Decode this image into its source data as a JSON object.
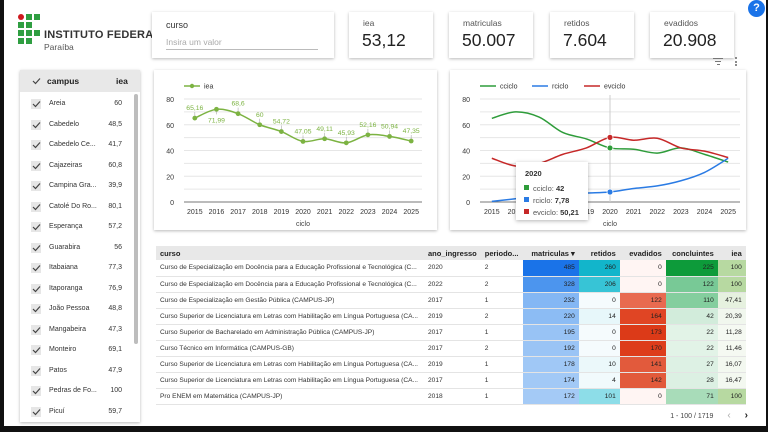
{
  "logo": {
    "title": "INSTITUTO FEDERAL",
    "subtitle": "Paraíba"
  },
  "curso_filter": {
    "label": "curso",
    "placeholder": "Insira um valor",
    "value": ""
  },
  "scorecards": [
    {
      "label": "iea",
      "value": "53,12"
    },
    {
      "label": "matriculas",
      "value": "50.007"
    },
    {
      "label": "retidos",
      "value": "7.604"
    },
    {
      "label": "evadidos",
      "value": "20.908"
    }
  ],
  "help_label": "?",
  "campus_list": {
    "header": {
      "name": "campus",
      "value": "iea"
    },
    "items": [
      {
        "name": "Areia",
        "value": "60",
        "checked": true
      },
      {
        "name": "Cabedelo",
        "value": "48,5",
        "checked": true
      },
      {
        "name": "Cabedelo Ce...",
        "value": "41,7",
        "checked": true
      },
      {
        "name": "Cajazeiras",
        "value": "60,8",
        "checked": true
      },
      {
        "name": "Campina Gra...",
        "value": "39,9",
        "checked": true
      },
      {
        "name": "Catolé Do Ro...",
        "value": "80,1",
        "checked": true
      },
      {
        "name": "Esperança",
        "value": "57,2",
        "checked": true
      },
      {
        "name": "Guarabira",
        "value": "56",
        "checked": true
      },
      {
        "name": "Itabaiana",
        "value": "77,3",
        "checked": true
      },
      {
        "name": "Itaporanga",
        "value": "76,9",
        "checked": true
      },
      {
        "name": "João Pessoa",
        "value": "48,8",
        "checked": true
      },
      {
        "name": "Mangabeira",
        "value": "47,3",
        "checked": true
      },
      {
        "name": "Monteiro",
        "value": "69,1",
        "checked": true
      },
      {
        "name": "Patos",
        "value": "47,9",
        "checked": true
      },
      {
        "name": "Pedras de Fo...",
        "value": "100",
        "checked": true
      },
      {
        "name": "Picuí",
        "value": "59,7",
        "checked": true
      }
    ]
  },
  "chart_data": [
    {
      "type": "line",
      "title": "",
      "xlabel": "ciclo",
      "ylabel": "",
      "x": [
        "2015",
        "2016",
        "2017",
        "2018",
        "2019",
        "2020",
        "2021",
        "2022",
        "2023",
        "2024",
        "2025"
      ],
      "ylim": [
        0,
        80
      ],
      "yticks": [
        "0",
        "20",
        "40",
        "60",
        "80"
      ],
      "grid": true,
      "legend": "top-left",
      "series": [
        {
          "name": "iea",
          "color": "#7cb342",
          "values": [
            65.16,
            71.99,
            68.6,
            60,
            54.72,
            47.05,
            49.11,
            45.93,
            52.16,
            50.94,
            47.35
          ],
          "labels": [
            "65,16",
            "71,99",
            "68,6",
            "60",
            "54,72",
            "47,05",
            "49,11",
            "45,93",
            "52,16",
            "50,94",
            "47,35"
          ]
        }
      ]
    },
    {
      "type": "line",
      "title": "",
      "xlabel": "ciclo",
      "ylabel": "",
      "x": [
        "2015",
        "2016",
        "2017",
        "2018",
        "2019",
        "2020",
        "2021",
        "2022",
        "2023",
        "2024",
        "2025"
      ],
      "ylim": [
        0,
        80
      ],
      "yticks": [
        "0",
        "20",
        "40",
        "60",
        "80"
      ],
      "grid": true,
      "legend": "top-left",
      "series": [
        {
          "name": "cciclo",
          "color": "#2e9c3a",
          "values": [
            65,
            70,
            66,
            54,
            49,
            42,
            41,
            38,
            42,
            37,
            31
          ]
        },
        {
          "name": "rciclo",
          "color": "#2a7be4",
          "values": [
            0.5,
            2.5,
            4.5,
            6,
            7,
            7.78,
            10.5,
            12.5,
            16.5,
            23,
            34
          ]
        },
        {
          "name": "evciclo",
          "color": "#c62828",
          "values": [
            34,
            28,
            30,
            37,
            42,
            50.21,
            48,
            49.5,
            42,
            39.5,
            34.5
          ]
        }
      ],
      "tooltip": {
        "title": "2020",
        "rows": [
          {
            "name": "cciclo",
            "value": "42",
            "color": "#2e9c3a"
          },
          {
            "name": "rciclo",
            "value": "7,78",
            "color": "#2a7be4"
          },
          {
            "name": "evciclo",
            "value": "50,21",
            "color": "#c62828"
          }
        ]
      }
    }
  ],
  "table": {
    "columns": [
      "curso",
      "ano_ingresso",
      "periodo...",
      "matriculas ▾",
      "retidos",
      "evadidos",
      "concluintes",
      "iea"
    ],
    "rows": [
      {
        "curso": "Curso de Especialização em Docência para a Educação Profissional e Tecnológica (C...",
        "ano": "2020",
        "periodo": "2",
        "matriculas": "485",
        "retidos": "260",
        "evadidos": "0",
        "concluintes": "225",
        "iea": "100",
        "colors": {
          "matriculas": "#1a73e8",
          "retidos": "#12b5cb",
          "evadidos": "#fff5f3",
          "concluintes": "#0d9b3a",
          "iea": "#b7d9a1"
        }
      },
      {
        "curso": "Curso de Especialização em Docência para a Educação Profissional e Tecnológica (C...",
        "ano": "2022",
        "periodo": "2",
        "matriculas": "328",
        "retidos": "206",
        "evadidos": "0",
        "concluintes": "122",
        "iea": "100",
        "colors": {
          "matriculas": "#4c95ee",
          "retidos": "#37c4d6",
          "evadidos": "#fff5f3",
          "concluintes": "#78c996",
          "iea": "#b7d9a1"
        }
      },
      {
        "curso": "Curso de Especialização em Gestão Pública (CAMPUS-JP)",
        "ano": "2017",
        "periodo": "1",
        "matriculas": "232",
        "retidos": "0",
        "evadidos": "122",
        "concluintes": "110",
        "iea": "47,41",
        "colors": {
          "matriculas": "#84b7f4",
          "retidos": "#f5fbfd",
          "evadidos": "#e86a50",
          "concluintes": "#84ce9e",
          "iea": "#e6f1df"
        }
      },
      {
        "curso": "Curso Superior de Licenciatura em Letras com Habilitação em Língua Portuguesa (CA...",
        "ano": "2019",
        "periodo": "2",
        "matriculas": "220",
        "retidos": "14",
        "evadidos": "164",
        "concluintes": "42",
        "iea": "20,39",
        "colors": {
          "matriculas": "#8cbcf4",
          "retidos": "#e7f7fa",
          "evadidos": "#e04524",
          "concluintes": "#d2ecdb",
          "iea": "#f1f7ee"
        }
      },
      {
        "curso": "Curso Superior de Bacharelado em Administração Pública (CAMPUS-JP)",
        "ano": "2017",
        "periodo": "1",
        "matriculas": "195",
        "retidos": "0",
        "evadidos": "173",
        "concluintes": "22",
        "iea": "11,28",
        "colors": {
          "matriculas": "#98c3f5",
          "retidos": "#f5fbfd",
          "evadidos": "#dc3a18",
          "concluintes": "#e2f3e7",
          "iea": "#f5f9f2"
        }
      },
      {
        "curso": "Curso Técnico em Informática (CAMPUS-GB)",
        "ano": "2017",
        "periodo": "2",
        "matriculas": "192",
        "retidos": "0",
        "evadidos": "170",
        "concluintes": "22",
        "iea": "11,46",
        "colors": {
          "matriculas": "#9ac4f5",
          "retidos": "#f5fbfd",
          "evadidos": "#dd3d1b",
          "concluintes": "#e2f3e7",
          "iea": "#f5f9f2"
        }
      },
      {
        "curso": "Curso Superior de Licenciatura em Letras com Habilitação em Língua Portuguesa (CA...",
        "ano": "2019",
        "periodo": "1",
        "matriculas": "178",
        "retidos": "10",
        "evadidos": "141",
        "concluintes": "27",
        "iea": "16,07",
        "colors": {
          "matriculas": "#a0c8f6",
          "retidos": "#ebf8fa",
          "evadidos": "#e25a3c",
          "concluintes": "#ddf1e4",
          "iea": "#f3f8f0"
        }
      },
      {
        "curso": "Curso Superior de Licenciatura em Letras com Habilitação em Língua Portuguesa (CA...",
        "ano": "2017",
        "periodo": "1",
        "matriculas": "174",
        "retidos": "4",
        "evadidos": "142",
        "concluintes": "28",
        "iea": "16,47",
        "colors": {
          "matriculas": "#a2c9f6",
          "retidos": "#f1fafc",
          "evadidos": "#e25a3b",
          "concluintes": "#dcf0e3",
          "iea": "#f3f8f0"
        }
      },
      {
        "curso": "Pro ENEM em Matemática (CAMPUS-JP)",
        "ano": "2018",
        "periodo": "1",
        "matriculas": "172",
        "retidos": "101",
        "evadidos": "0",
        "concluintes": "71",
        "iea": "100",
        "colors": {
          "matriculas": "#a4caf6",
          "retidos": "#8ddde8",
          "evadidos": "#fff5f3",
          "concluintes": "#a8dcb9",
          "iea": "#b7d9a1"
        }
      }
    ],
    "pagination": {
      "text": "1 - 100 / 1719",
      "prev": "‹",
      "next": "›"
    }
  }
}
